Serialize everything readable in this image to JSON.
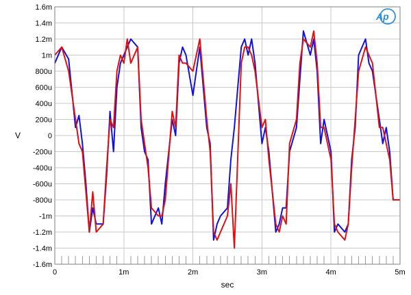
{
  "chart_data": {
    "type": "line",
    "title": "",
    "xlabel": "sec",
    "ylabel": "V",
    "xlim": [
      0,
      0.005
    ],
    "ylim": [
      -0.0016,
      0.0016
    ],
    "x_ticks": [
      {
        "value": 0,
        "label": "0"
      },
      {
        "value": 0.001,
        "label": "1m"
      },
      {
        "value": 0.002,
        "label": "2m"
      },
      {
        "value": 0.003,
        "label": "3m"
      },
      {
        "value": 0.004,
        "label": "4m"
      },
      {
        "value": 0.005,
        "label": "5m"
      }
    ],
    "y_ticks": [
      {
        "value": 0.0016,
        "label": "1.6m"
      },
      {
        "value": 0.0014,
        "label": "1.4m"
      },
      {
        "value": 0.0012,
        "label": "1.2m"
      },
      {
        "value": 0.001,
        "label": "1m"
      },
      {
        "value": 0.0008,
        "label": "800u"
      },
      {
        "value": 0.0006,
        "label": "600u"
      },
      {
        "value": 0.0004,
        "label": "400u"
      },
      {
        "value": 0.0002,
        "label": "200u"
      },
      {
        "value": 0,
        "label": "0"
      },
      {
        "value": -0.0002,
        "label": "-200u"
      },
      {
        "value": -0.0004,
        "label": "-400u"
      },
      {
        "value": -0.0006,
        "label": "-600u"
      },
      {
        "value": -0.0008,
        "label": "-800u"
      },
      {
        "value": -0.001,
        "label": "-1m"
      },
      {
        "value": -0.0012,
        "label": "-1.2m"
      },
      {
        "value": -0.0014,
        "label": "-1.4m"
      },
      {
        "value": -0.0016,
        "label": "-1.6m"
      }
    ],
    "grid": true,
    "legend": "none",
    "series": [
      {
        "color": "#1010e0",
        "x": [
          0,
          0.0001,
          0.0002,
          0.0003,
          0.00035,
          0.0004,
          0.00045,
          0.0005,
          0.00055,
          0.0006,
          0.0007,
          0.00075,
          0.0008,
          0.00085,
          0.0009,
          0.00095,
          0.001,
          0.00105,
          0.0011,
          0.0012,
          0.00125,
          0.0013,
          0.00135,
          0.0014,
          0.0015,
          0.00155,
          0.0016,
          0.0017,
          0.00175,
          0.0018,
          0.00185,
          0.0019,
          0.002,
          0.00205,
          0.0021,
          0.0022,
          0.00225,
          0.0023,
          0.00235,
          0.0024,
          0.0025,
          0.00255,
          0.0026,
          0.0027,
          0.00275,
          0.0028,
          0.00285,
          0.0029,
          0.003,
          0.00305,
          0.0031,
          0.0032,
          0.00325,
          0.0033,
          0.00335,
          0.0034,
          0.0035,
          0.00355,
          0.0036,
          0.0037,
          0.00375,
          0.0038,
          0.00385,
          0.0039,
          0.004,
          0.00405,
          0.0041,
          0.0042,
          0.00425,
          0.0043,
          0.00435,
          0.0044,
          0.0045,
          0.00455,
          0.0046,
          0.0047,
          0.00475,
          0.0048,
          0.00485,
          0.0049,
          0.005
        ],
        "y": [
          0.0009,
          0.0011,
          0.00095,
          0.0001,
          0.00025,
          -0.0001,
          -0.0006,
          -0.0012,
          -0.0009,
          -0.0011,
          -0.0011,
          -0.0005,
          0.0003,
          -0.0002,
          0.0006,
          0.0009,
          0.001,
          0.0011,
          0.0012,
          0.0011,
          0.0001,
          -0.0002,
          -0.0003,
          -0.0011,
          -0.0009,
          -0.0011,
          -0.0006,
          0.0002,
          0.0,
          0.0009,
          0.0011,
          0.001,
          0.0005,
          0.0008,
          0.0011,
          0.0001,
          -0.0001,
          -0.0013,
          -0.0011,
          -0.001,
          -0.0009,
          -0.0003,
          0.0001,
          0.0011,
          0.0012,
          0.001,
          0.0012,
          0.0009,
          -0.0001,
          0.0001,
          -0.0002,
          -0.0012,
          -0.0011,
          -0.0009,
          -0.0009,
          -0.0002,
          0.0001,
          0.0007,
          0.0013,
          0.001,
          0.0012,
          0.0008,
          -0.0001,
          0.0002,
          -0.0002,
          -0.0012,
          -0.0011,
          -0.0012,
          -0.0011,
          -0.0003,
          0.0001,
          0.001,
          0.0012,
          0.0009,
          0.0008,
          0.0002,
          -0.0001,
          0.0001,
          -0.0002,
          -0.0008,
          -0.0008
        ]
      },
      {
        "color": "#e01010",
        "x": [
          0,
          0.0001,
          0.0002,
          0.0003,
          0.00035,
          0.0004,
          0.00045,
          0.0005,
          0.00055,
          0.0006,
          0.0007,
          0.00075,
          0.0008,
          0.00085,
          0.0009,
          0.00095,
          0.001,
          0.00105,
          0.0011,
          0.0012,
          0.00125,
          0.0013,
          0.00135,
          0.0014,
          0.0015,
          0.00155,
          0.0016,
          0.0017,
          0.00175,
          0.0018,
          0.00185,
          0.0019,
          0.002,
          0.00205,
          0.0021,
          0.0022,
          0.00225,
          0.0023,
          0.00235,
          0.0024,
          0.0025,
          0.00255,
          0.0026,
          0.0027,
          0.00275,
          0.0028,
          0.00285,
          0.0029,
          0.003,
          0.00305,
          0.0031,
          0.0032,
          0.00325,
          0.0033,
          0.00335,
          0.0034,
          0.0035,
          0.00355,
          0.0036,
          0.0037,
          0.00375,
          0.0038,
          0.00385,
          0.0039,
          0.004,
          0.00405,
          0.0041,
          0.0042,
          0.00425,
          0.0043,
          0.00435,
          0.0044,
          0.0045,
          0.00455,
          0.0046,
          0.0047,
          0.00475,
          0.0048,
          0.00485,
          0.0049,
          0.005
        ],
        "y": [
          0.001,
          0.0011,
          0.0008,
          0.0002,
          -0.0001,
          -0.0002,
          -0.0007,
          -0.0012,
          -0.0007,
          -0.0012,
          -0.0011,
          -0.0004,
          0.0002,
          0.0001,
          0.0008,
          0.001,
          0.0009,
          0.0012,
          0.0009,
          0.0011,
          0.0002,
          -0.0001,
          -0.0004,
          -0.0009,
          -0.001,
          -0.001,
          -0.0008,
          0.0003,
          0.0001,
          0.001,
          0.0009,
          0.0009,
          0.0008,
          0.001,
          0.0012,
          0.0002,
          -0.0002,
          -0.0012,
          -0.0013,
          -0.0012,
          -0.001,
          -0.0006,
          -0.0014,
          0.0009,
          0.0011,
          0.0011,
          0.001,
          0.0008,
          0.0001,
          0.0002,
          -0.0003,
          -0.0011,
          -0.0012,
          -0.001,
          -0.0011,
          -0.0001,
          0.0002,
          0.0009,
          0.0012,
          0.0011,
          0.0013,
          0.0009,
          0.0001,
          0.0001,
          -0.0003,
          -0.0011,
          -0.0012,
          -0.0013,
          -0.0011,
          -0.0004,
          0.0002,
          0.0008,
          0.0011,
          0.001,
          0.0009,
          0.0001,
          0.0001,
          -0.0001,
          -0.0003,
          -0.0008,
          -0.0008
        ]
      }
    ]
  },
  "logo": {
    "text": "Ap"
  }
}
